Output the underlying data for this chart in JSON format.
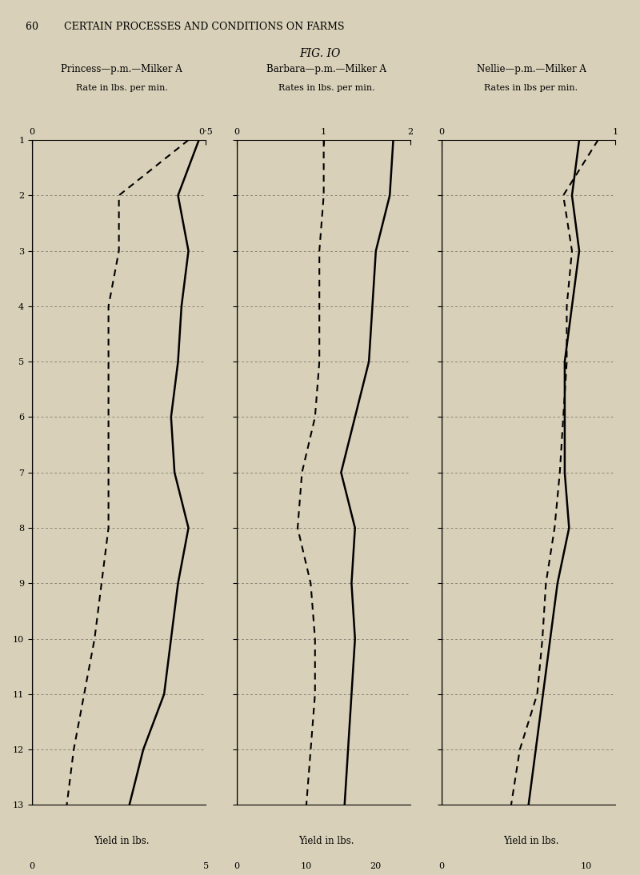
{
  "page_header": "60        CERTAIN PROCESSES AND CONDITIONS ON FARMS",
  "fig_title": "FIG. IO",
  "background_color": "#d8d0b8",
  "days": [
    1,
    2,
    3,
    4,
    5,
    6,
    7,
    8,
    9,
    10,
    11,
    12,
    13
  ],
  "panels": [
    {
      "title_line1": "Princess—p.m.—Milker A",
      "title_line2": "Rate in lbs. per min.",
      "rate_xlim": [
        0,
        0.5
      ],
      "rate_xticks": [
        0,
        0.5
      ],
      "rate_xtick_labels": [
        "0",
        "0·5"
      ],
      "yield_xlim": [
        0,
        5
      ],
      "yield_xticks": [
        0,
        5
      ],
      "yield_xtick_labels": [
        "0",
        "5"
      ],
      "yield_xlabel": "Yield in lbs.",
      "rate_data": [
        0.45,
        0.25,
        0.25,
        0.22,
        0.22,
        0.22,
        0.22,
        0.22,
        0.2,
        0.18,
        0.15,
        0.12,
        0.1
      ],
      "yield_data": [
        4.8,
        4.2,
        4.5,
        4.3,
        4.2,
        4.0,
        4.1,
        4.5,
        4.2,
        4.0,
        3.8,
        3.2,
        2.8
      ]
    },
    {
      "title_line1": "Barbara—p.m.—Milker A",
      "title_line2": "Rates in lbs. per min.",
      "rate_xlim": [
        0,
        2
      ],
      "rate_xticks": [
        0,
        1,
        2
      ],
      "rate_xtick_labels": [
        "0",
        "1",
        "2"
      ],
      "yield_xlim": [
        0,
        25
      ],
      "yield_xticks": [
        0,
        10,
        20
      ],
      "yield_xtick_labels": [
        "0",
        "10",
        "20"
      ],
      "yield_xlabel": "Yield in lbs.",
      "rate_data": [
        1.0,
        1.0,
        0.95,
        0.95,
        0.95,
        0.9,
        0.75,
        0.7,
        0.85,
        0.9,
        0.9,
        0.85,
        0.8
      ],
      "yield_data": [
        22.5,
        22.0,
        20.0,
        19.5,
        19.0,
        17.0,
        15.0,
        17.0,
        16.5,
        17.0,
        16.5,
        16.0,
        15.5
      ]
    },
    {
      "title_line1": "Nellie—p.m.—Milker A",
      "title_line2": "Rates in lbs per min.",
      "rate_xlim": [
        0,
        1
      ],
      "rate_xticks": [
        0,
        1
      ],
      "rate_xtick_labels": [
        "0",
        "1"
      ],
      "yield_xlim": [
        0,
        12
      ],
      "yield_xticks": [
        0,
        10
      ],
      "yield_xtick_labels": [
        "0",
        "10"
      ],
      "yield_xlabel": "Yield in lbs.",
      "rate_data": [
        0.9,
        0.7,
        0.75,
        0.72,
        0.72,
        0.7,
        0.68,
        0.65,
        0.6,
        0.58,
        0.55,
        0.45,
        0.4
      ],
      "yield_data": [
        9.5,
        9.0,
        9.5,
        9.0,
        8.5,
        8.5,
        8.5,
        8.8,
        8.0,
        7.5,
        7.0,
        6.5,
        6.0
      ]
    }
  ]
}
